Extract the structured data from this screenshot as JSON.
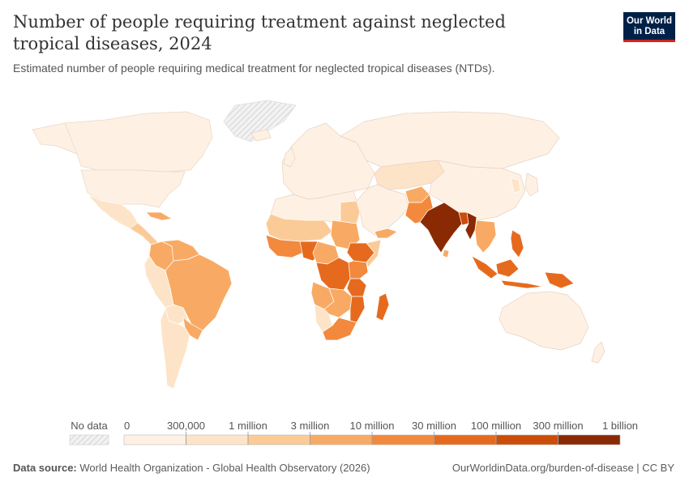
{
  "header": {
    "title": "Number of people requiring treatment against neglected tropical diseases, 2024",
    "subtitle": "Estimated number of people requiring medical treatment for neglected tropical diseases (NTDs).",
    "logo_line1": "Our World",
    "logo_line2": "in Data"
  },
  "legend": {
    "no_data_label": "No data",
    "bins": [
      "0",
      "300,000",
      "1 million",
      "3 million",
      "10 million",
      "30 million",
      "100 million",
      "300 million",
      "1 billion"
    ],
    "colors": [
      "#fef1e4",
      "#fde4c8",
      "#fbcb97",
      "#f8aa64",
      "#f2893c",
      "#e66a1e",
      "#cc4c0a",
      "#8a2a04"
    ],
    "no_data_color": "#e9e9e9"
  },
  "footer": {
    "source_label": "Data source:",
    "source_text": "World Health Organization - Global Health Observatory (2026)",
    "url_text": "OurWorldinData.org/burden-of-disease | CC BY"
  },
  "map_data": {
    "type": "choropleth",
    "countries": [
      {
        "name": "India",
        "bin": 7
      },
      {
        "name": "Myanmar",
        "bin": 7
      },
      {
        "name": "Bangladesh",
        "bin": 6
      },
      {
        "name": "Pakistan",
        "bin": 4
      },
      {
        "name": "Nepal",
        "bin": 4
      },
      {
        "name": "Nigeria",
        "bin": 5
      },
      {
        "name": "Ethiopia",
        "bin": 5
      },
      {
        "name": "Democratic Republic of the Congo",
        "bin": 5
      },
      {
        "name": "Tanzania",
        "bin": 5
      },
      {
        "name": "Indonesia",
        "bin": 5
      },
      {
        "name": "Philippines",
        "bin": 5
      },
      {
        "name": "Mozambique",
        "bin": 5
      },
      {
        "name": "Madagascar",
        "bin": 5
      },
      {
        "name": "Papua New Guinea",
        "bin": 5
      },
      {
        "name": "Brazil",
        "bin": 4
      },
      {
        "name": "Colombia",
        "bin": 3
      },
      {
        "name": "Venezuela",
        "bin": 3
      },
      {
        "name": "Sudan",
        "bin": 3
      },
      {
        "name": "Kenya",
        "bin": 4
      },
      {
        "name": "Uganda",
        "bin": 4
      },
      {
        "name": "Angola",
        "bin": 3
      },
      {
        "name": "South Africa",
        "bin": 4
      },
      {
        "name": "Vietnam",
        "bin": 3
      },
      {
        "name": "Thailand",
        "bin": 3
      },
      {
        "name": "Egypt",
        "bin": 2
      },
      {
        "name": "Afghanistan",
        "bin": 3
      },
      {
        "name": "Yemen",
        "bin": 3
      },
      {
        "name": "Mexico",
        "bin": 1
      },
      {
        "name": "Peru",
        "bin": 1
      },
      {
        "name": "Bolivia",
        "bin": 1
      },
      {
        "name": "Argentina",
        "bin": 1
      },
      {
        "name": "China",
        "bin": 1
      },
      {
        "name": "Russia",
        "bin": 0
      },
      {
        "name": "United States",
        "bin": 0
      },
      {
        "name": "Canada",
        "bin": 0
      },
      {
        "name": "Australia",
        "bin": 0
      },
      {
        "name": "Greenland",
        "bin": -1
      }
    ]
  }
}
